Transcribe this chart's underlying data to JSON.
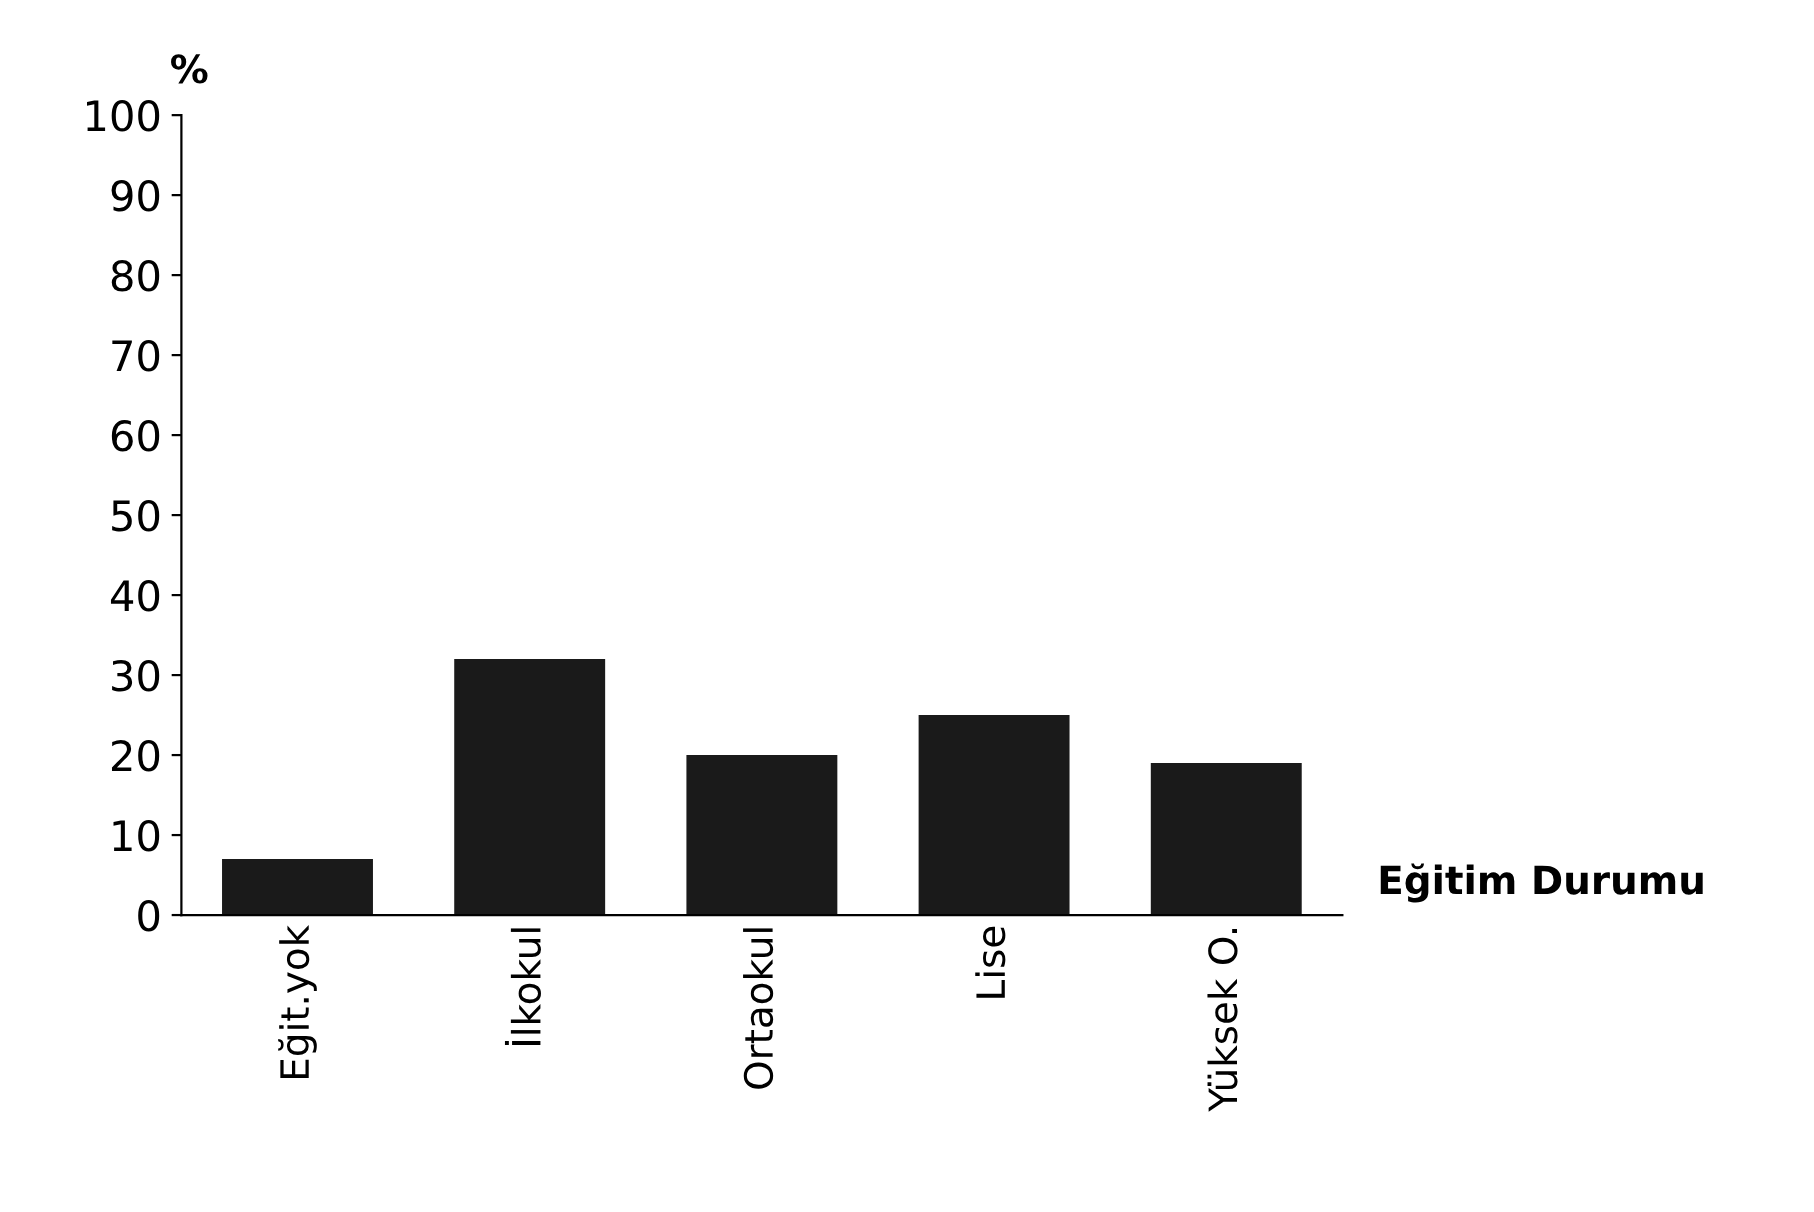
{
  "chart_data": {
    "type": "bar",
    "ylabel": "%",
    "xlabel": "Eğitim Durumu",
    "categories": [
      "Eğit.yok",
      "İlkokul",
      "Ortaokul",
      "Lise",
      "Yüksek O."
    ],
    "values": [
      7,
      32,
      20,
      25,
      19
    ],
    "color": "#1a1a1a",
    "ylim": [
      0,
      100
    ],
    "yticks": [
      0,
      10,
      20,
      30,
      40,
      50,
      60,
      70,
      80,
      90,
      100
    ],
    "grid": false
  }
}
